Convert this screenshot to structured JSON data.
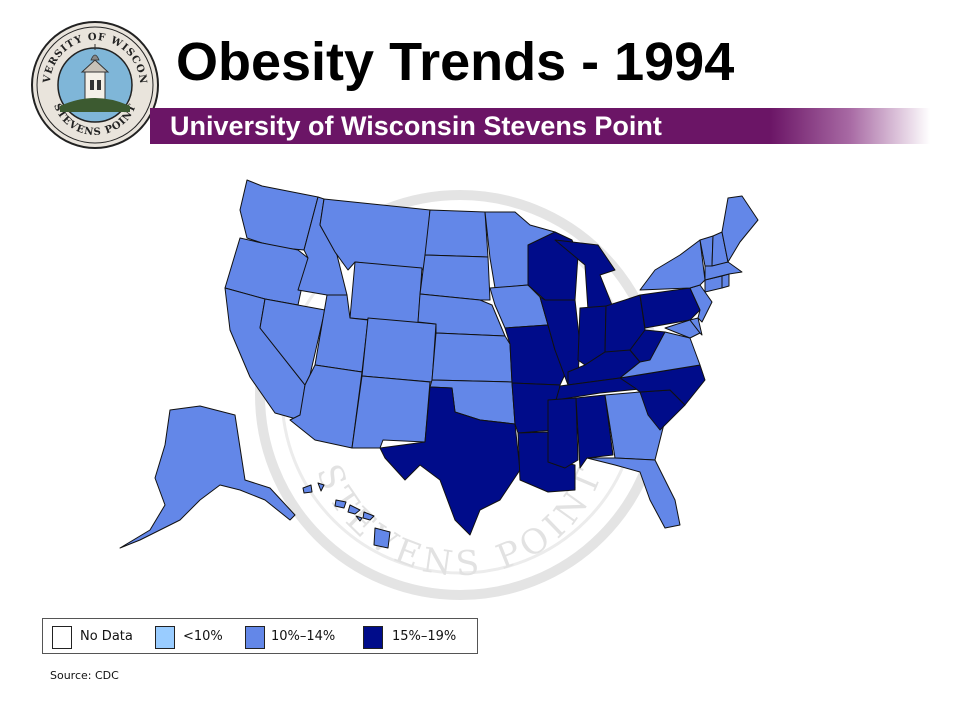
{
  "header": {
    "title": "Obesity Trends - 1994",
    "subtitle": "University of Wisconsin Stevens Point"
  },
  "seal": {
    "top_text": "UNIVERSITY OF WISCONSIN",
    "bottom_text": "STEVENS POINT"
  },
  "watermark": {
    "text": "STEVENS POINT"
  },
  "legend": {
    "items": [
      {
        "label": "No Data",
        "color": "#ffffff"
      },
      {
        "label": "<10%",
        "color": "#99ccff"
      },
      {
        "label": "10%–14%",
        "color": "#6387e8"
      },
      {
        "label": "15%–19%",
        "color": "#000c8a"
      }
    ]
  },
  "source": "Source: CDC",
  "map_data": {
    "year": 1994,
    "categories": {
      "no_data": "No Data",
      "lt10": "<10%",
      "p10_14": "10%–14%",
      "p15_19": "15%–19%"
    },
    "states_15_19": [
      "WI",
      "MI",
      "IN",
      "OH",
      "PA",
      "KY",
      "WV",
      "MO",
      "IL",
      "AR",
      "TN",
      "MS",
      "AL",
      "LA",
      "TX",
      "NC",
      "SC"
    ],
    "states_10_14": [
      "WA",
      "OR",
      "CA",
      "NV",
      "ID",
      "MT",
      "WY",
      "UT",
      "AZ",
      "CO",
      "NM",
      "ND",
      "SD",
      "NE",
      "KS",
      "OK",
      "MN",
      "IA",
      "GA",
      "FL",
      "VA",
      "MD",
      "DE",
      "NJ",
      "NY",
      "CT",
      "RI",
      "MA",
      "VT",
      "NH",
      "ME",
      "AK",
      "HI"
    ],
    "states_lt10": [],
    "states_no_data": []
  }
}
